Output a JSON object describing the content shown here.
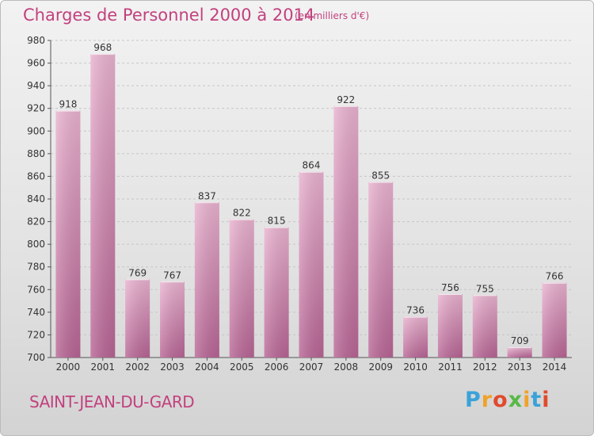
{
  "header": {
    "title": "Charges de Personnel 2000 à 2014",
    "subtitle": "(en milliers d'€)"
  },
  "footer": {
    "commune": "SAINT-JEAN-DU-GARD",
    "logo_text": "Proxiti",
    "logo_colors": [
      "#3aa2d9",
      "#f0a22a",
      "#e14a2e",
      "#57b947",
      "#f0a22a",
      "#3aa2d9",
      "#e14a2e"
    ]
  },
  "colors": {
    "accent": "#c2417e",
    "bar_light": "#eab3d0",
    "bar_dark": "#c06a9c"
  },
  "chart_data": {
    "type": "bar",
    "categories": [
      "2000",
      "2001",
      "2002",
      "2003",
      "2004",
      "2005",
      "2006",
      "2007",
      "2008",
      "2009",
      "2010",
      "2011",
      "2012",
      "2013",
      "2014"
    ],
    "values": [
      918,
      968,
      769,
      767,
      837,
      822,
      815,
      864,
      922,
      855,
      736,
      756,
      755,
      709,
      766
    ],
    "ylim": [
      700,
      980
    ],
    "yticks": [
      700,
      720,
      740,
      760,
      780,
      800,
      820,
      840,
      860,
      880,
      900,
      920,
      940,
      960,
      980
    ],
    "grid": true,
    "xlabel": "",
    "ylabel": ""
  }
}
